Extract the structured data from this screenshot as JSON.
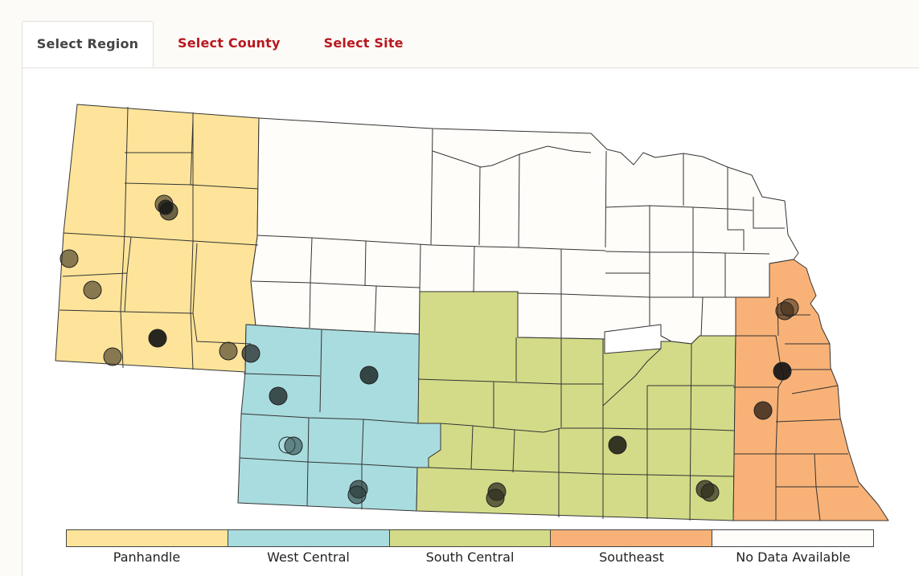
{
  "tabs": {
    "region": "Select Region",
    "county": "Select County",
    "site": "Select Site"
  },
  "legend": [
    {
      "label": "Panhandle",
      "color": "#fde49a"
    },
    {
      "label": "West Central",
      "color": "#a9dcdf"
    },
    {
      "label": "South Central",
      "color": "#d4db88"
    },
    {
      "label": "Southeast",
      "color": "#f8b277"
    },
    {
      "label": "No Data Available",
      "color": "#fffdf9"
    }
  ],
  "colors": {
    "tab_active_text": "#444444",
    "tab_link_text": "#b8181e",
    "county_border": "#333333",
    "site_marker": "#3a3020"
  }
}
